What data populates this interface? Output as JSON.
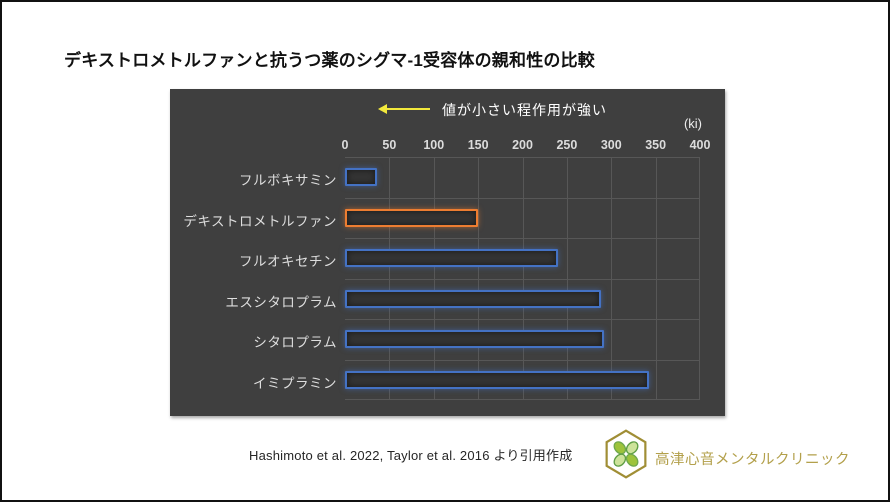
{
  "page": {
    "title": "デキストロメトルファンと抗うつ薬のシグマ-1受容体の親和性の比較",
    "source_note": "Hashimoto et al. 2022, Taylor et al. 2016 より引用作成",
    "logo_text": "高津心音メンタルクリニック"
  },
  "chart_data": {
    "type": "bar",
    "orientation": "horizontal",
    "annotation": "値が小さい程作用が強い",
    "annotation_arrow": "left",
    "unit_label": "(ki)",
    "categories": [
      "フルボキサミン",
      "デキストロメトルファン",
      "フルオキセチン",
      "エスシタロプラム",
      "シタロプラム",
      "イミプラミン"
    ],
    "values": [
      36,
      150,
      240,
      288,
      292,
      343
    ],
    "highlight_index": 1,
    "xlim": [
      0,
      400
    ],
    "x_ticks": [
      0,
      50,
      100,
      150,
      200,
      250,
      300,
      350,
      400
    ],
    "grid": true,
    "legend": "none",
    "colors": {
      "bar_default": "#4472C4",
      "bar_highlight": "#ED7D31",
      "panel_bg": "#3F3F3F",
      "gridline": "#575757",
      "axis_text": "#DCDCDC",
      "annotation_arrow_color": "#F2E93C",
      "logo_gold": "#B3A04B",
      "logo_green_light": "#9DC33B",
      "logo_green_dark": "#5E9E44"
    }
  }
}
